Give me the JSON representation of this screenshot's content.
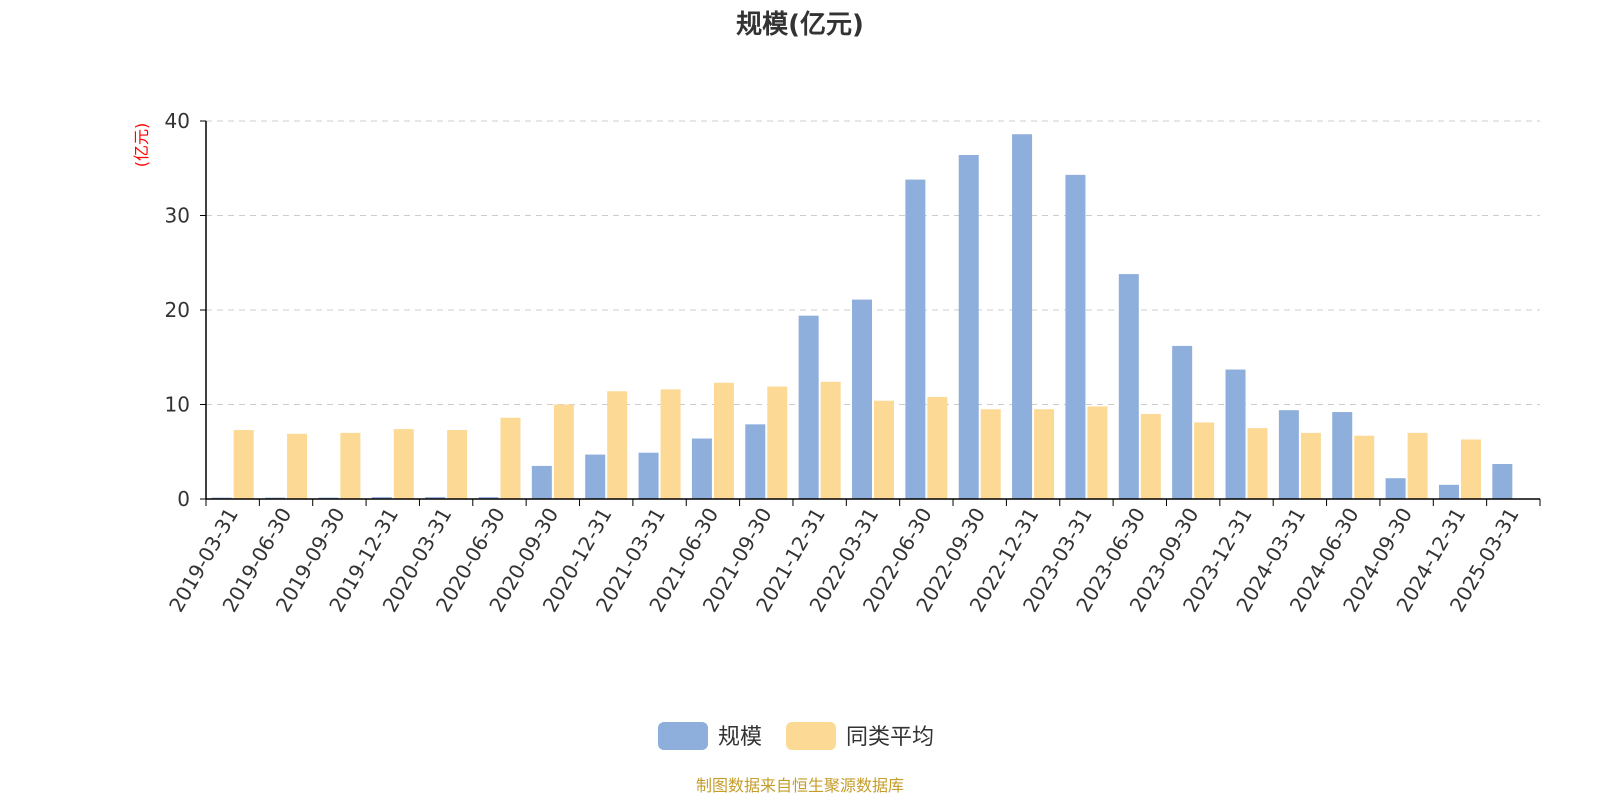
{
  "chart_data": {
    "type": "bar",
    "title": "规模(亿元)",
    "ylabel": "(亿元)",
    "ylim": [
      0,
      40
    ],
    "yticks": [
      0,
      10,
      20,
      30,
      40
    ],
    "grid": "horizontal-dashed",
    "legend_position": "bottom",
    "categories": [
      "2019-03-31",
      "2019-06-30",
      "2019-09-30",
      "2019-12-31",
      "2020-03-31",
      "2020-06-30",
      "2020-09-30",
      "2020-12-31",
      "2021-03-31",
      "2021-06-30",
      "2021-09-30",
      "2021-12-31",
      "2022-03-31",
      "2022-06-30",
      "2022-09-30",
      "2022-12-31",
      "2023-03-31",
      "2023-06-30",
      "2023-09-30",
      "2023-12-31",
      "2024-03-31",
      "2024-06-30",
      "2024-09-30",
      "2024-12-31",
      "2025-03-31"
    ],
    "series": [
      {
        "name": "规模",
        "color": "#8eaedb",
        "values": [
          0.15,
          0.15,
          0.15,
          0.2,
          0.2,
          0.2,
          3.5,
          4.7,
          4.9,
          6.4,
          7.9,
          19.4,
          21.1,
          33.8,
          36.4,
          38.6,
          34.3,
          23.8,
          16.2,
          13.7,
          9.4,
          9.2,
          2.2,
          1.5,
          3.7
        ]
      },
      {
        "name": "同类平均",
        "color": "#fdd996",
        "values": [
          7.3,
          6.9,
          7.0,
          7.4,
          7.3,
          8.6,
          10.0,
          11.4,
          11.6,
          12.3,
          11.9,
          12.4,
          10.4,
          10.8,
          9.5,
          9.5,
          9.8,
          9.0,
          8.1,
          7.5,
          7.0,
          6.7,
          7.0,
          6.3,
          null
        ]
      }
    ]
  },
  "colors": {
    "title": "#333333",
    "unit_label": "#ff0000",
    "axis": "#000000",
    "grid": "#cccccc",
    "source": "#c59d2b"
  },
  "source_text": "制图数据来自恒生聚源数据库"
}
